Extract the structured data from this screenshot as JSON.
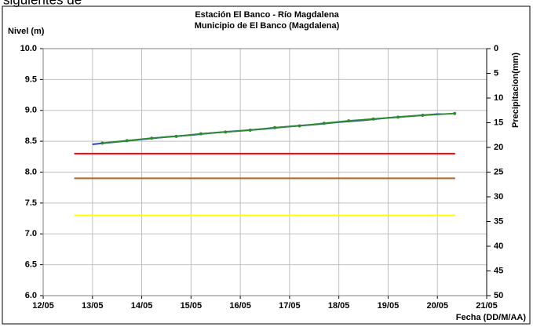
{
  "chart_data": {
    "type": "line",
    "caption": "siguientes de",
    "title": "Estación El Banco - Río Magdalena",
    "subtitle": "Municipio de El Banco (Magdalena)",
    "ylabel": "Nivel (m)",
    "y2label": "Precipitacion(mm)",
    "xlabel": "Fecha (DD/M/AA)",
    "xlim": [
      12,
      21
    ],
    "xticks": [
      {
        "value": 12,
        "label": "12/05"
      },
      {
        "value": 13,
        "label": "13/05"
      },
      {
        "value": 14,
        "label": "14/05"
      },
      {
        "value": 15,
        "label": "15/05"
      },
      {
        "value": 16,
        "label": "16/05"
      },
      {
        "value": 17,
        "label": "17/05"
      },
      {
        "value": 18,
        "label": "18/05"
      },
      {
        "value": 19,
        "label": "19/05"
      },
      {
        "value": 20,
        "label": "20/05"
      },
      {
        "value": 21,
        "label": "21/05"
      }
    ],
    "ylim": [
      6,
      10
    ],
    "yticks": [
      {
        "value": 6,
        "label": "6.0"
      },
      6.5,
      {
        "value": 7,
        "label": "7.0"
      },
      7.5,
      {
        "value": 8,
        "label": "8.0"
      },
      8.5,
      {
        "value": 9,
        "label": "9.0"
      },
      9.5,
      {
        "value": 10,
        "label": "10.0"
      }
    ],
    "y2lim": [
      50,
      0
    ],
    "y2ticks": [
      0,
      5,
      10,
      15,
      20,
      25,
      30,
      35,
      40,
      45,
      50
    ],
    "grid": true,
    "series": [
      {
        "color": "#ffff00",
        "x": [
          12.63,
          20.36
        ],
        "values": [
          7.3,
          7.3
        ]
      },
      {
        "color": "#b5651d",
        "x": [
          12.63,
          20.36
        ],
        "values": [
          7.9,
          7.9
        ]
      },
      {
        "color": "#ff0000",
        "x": [
          12.63,
          20.36
        ],
        "values": [
          8.3,
          8.3
        ]
      },
      {
        "color": "#1f3fd6",
        "x": [
          13.0,
          13.5,
          14.0,
          14.5,
          15.0,
          15.5,
          16.0,
          16.5,
          17.0,
          17.5,
          18.0,
          18.5,
          19.0,
          19.5,
          20.0,
          20.1
        ],
        "values": [
          8.45,
          8.49,
          8.53,
          8.57,
          8.6,
          8.64,
          8.67,
          8.7,
          8.74,
          8.77,
          8.81,
          8.84,
          8.88,
          8.91,
          8.94,
          8.94
        ]
      },
      {
        "color": "#2e8b2e",
        "markers": true,
        "x": [
          13.2,
          13.7,
          14.2,
          14.7,
          15.2,
          15.7,
          16.2,
          16.7,
          17.2,
          17.7,
          18.2,
          18.7,
          19.2,
          19.7,
          20.35
        ],
        "values": [
          8.47,
          8.51,
          8.55,
          8.58,
          8.62,
          8.65,
          8.68,
          8.72,
          8.75,
          8.79,
          8.83,
          8.86,
          8.89,
          8.92,
          8.95
        ]
      }
    ]
  }
}
